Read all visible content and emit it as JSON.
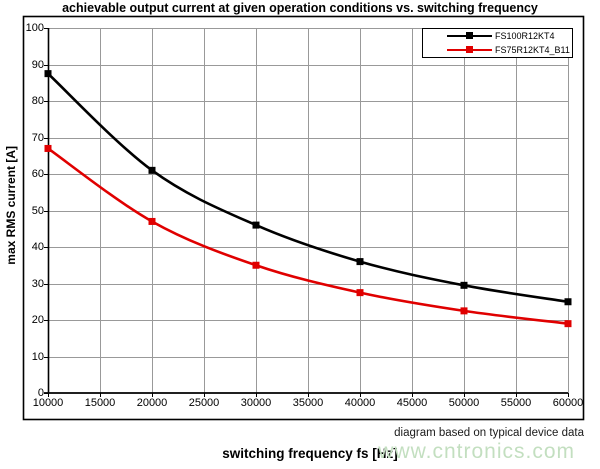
{
  "page": {
    "title": "achievable output current at given operation conditions vs. switching frequency",
    "note": "diagram based on typical device data",
    "watermark": "www.cntronics.com"
  },
  "colors": {
    "series1": "#000000",
    "series2": "#e00000",
    "gridline": "#999999",
    "axis": "#000000",
    "frame": "#000000",
    "watermark_green": "#c3dfc0"
  },
  "chart_data": {
    "type": "line",
    "title": "achievable output current at given operation conditions vs. switching frequency",
    "xlabel": "switching frequency fs [Hz]",
    "ylabel": "max RMS current [A]",
    "x": [
      10000,
      20000,
      30000,
      40000,
      50000,
      60000
    ],
    "series": [
      {
        "name": "FS100R12KT4",
        "color": "#000000",
        "marker": "square",
        "values": [
          87.5,
          61,
          46,
          36,
          29.5,
          25
        ]
      },
      {
        "name": "FS75R12KT4_B11",
        "color": "#e00000",
        "marker": "square",
        "values": [
          67,
          47,
          35,
          27.5,
          22.5,
          19
        ]
      }
    ],
    "xlim": [
      10000,
      60000
    ],
    "ylim": [
      0,
      100
    ],
    "xticks": [
      10000,
      15000,
      20000,
      25000,
      30000,
      35000,
      40000,
      45000,
      50000,
      55000,
      60000
    ],
    "yticks": [
      0,
      10,
      20,
      30,
      40,
      50,
      60,
      70,
      80,
      90,
      100
    ],
    "grid": true,
    "legend_position": "top-right",
    "legend": [
      "FS100R12KT4",
      "FS75R12KT4_B11"
    ]
  }
}
